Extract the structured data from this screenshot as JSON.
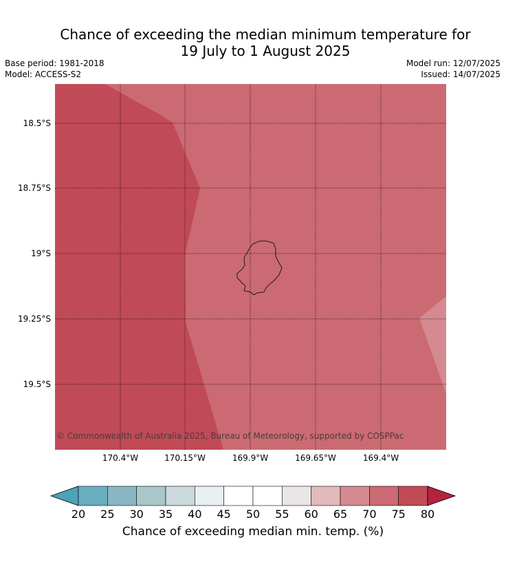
{
  "title_line1": "Chance of exceeding the median minimum temperature for",
  "title_line2": "19 July to 1 August 2025",
  "meta_left": {
    "base_period": "Base period: 1981-2018",
    "model": "Model: ACCESS-S2"
  },
  "meta_right": {
    "model_run": "Model run: 12/07/2025",
    "issued": "Issued: 14/07/2025"
  },
  "map": {
    "lat_labels": [
      "18.5°S",
      "18.75°S",
      "19°S",
      "19.25°S",
      "19.5°S"
    ],
    "lon_labels": [
      "170.4°W",
      "170.15°W",
      "169.9°W",
      "169.65°W",
      "169.4°W"
    ],
    "copyright": "© Commonwealth of Australia 2025, Bureau of Meteorology, supported by COSPPac",
    "region_colors": {
      "75-80": "#c14a57",
      "70-75": "#cb6a73",
      "65-70": "#d48a90"
    }
  },
  "colorbar": {
    "ticks": [
      "20",
      "25",
      "30",
      "35",
      "40",
      "45",
      "50",
      "55",
      "60",
      "65",
      "70",
      "75",
      "80"
    ],
    "colors": [
      "#4aa3b8",
      "#6aaebf",
      "#8ab6c3",
      "#a9c6cb",
      "#c9d9dc",
      "#e8f0f1",
      "#ffffff",
      "#ffffff",
      "#ebe6e6",
      "#e2b9bc",
      "#d48a90",
      "#cb6a73",
      "#c14a57",
      "#b5223f"
    ],
    "label": "Chance of exceeding median min. temp. (%)"
  }
}
